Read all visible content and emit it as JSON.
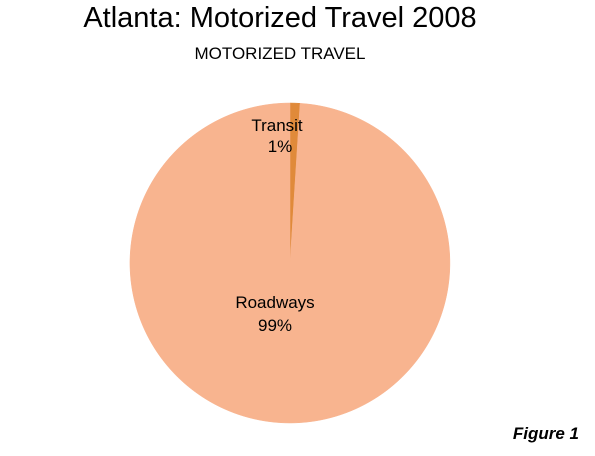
{
  "chart_data": {
    "type": "pie",
    "title": "Atlanta: Motorized Travel 2008",
    "subtitle": "MOTORIZED TRAVEL",
    "slices": [
      {
        "label": "Transit",
        "value": 1,
        "value_label": "1%",
        "color": "#E08A3A"
      },
      {
        "label": "Roadways",
        "value": 99,
        "value_label": "99%",
        "color": "#F8B48F"
      }
    ],
    "start": "top, clockwise",
    "legend": "none"
  },
  "figure_label": "Figure 1"
}
